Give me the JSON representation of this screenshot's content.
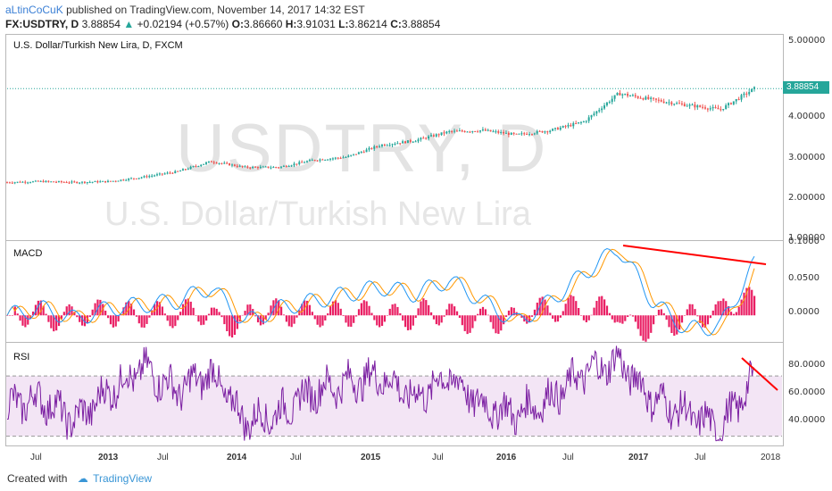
{
  "header": {
    "author": "aLtinCoCuK",
    "published": "published on TradingView.com, November 14, 2017 14:32 EST",
    "symbol": "FX:USDTRY, D",
    "last": "3.88854",
    "change": "+0.02194 (+0.57%)",
    "o_label": "O:",
    "o": "3.86660",
    "h_label": "H:",
    "h": "3.91031",
    "l_label": "L:",
    "l": "3.86214",
    "c_label": "C:",
    "c": "3.88854"
  },
  "price_panel": {
    "title": "U.S. Dollar/Turkish New Lira, D, FXCM",
    "watermark_symbol": "USDTRY, D",
    "watermark_name": "U.S. Dollar/Turkish New Lira",
    "current_price": "3.88854",
    "yticks": [
      "5.00000",
      "4.00000",
      "3.00000",
      "2.00000",
      "1.00000"
    ]
  },
  "macd_panel": {
    "title": "MACD",
    "yticks": [
      "0.1000",
      "0.0500",
      "0.0000"
    ]
  },
  "rsi_panel": {
    "title": "RSI",
    "yticks": [
      "80.0000",
      "60.0000",
      "40.0000"
    ]
  },
  "xaxis": {
    "ticks": [
      {
        "label": "Jul",
        "bold": false
      },
      {
        "label": "2013",
        "bold": true
      },
      {
        "label": "Jul",
        "bold": false
      },
      {
        "label": "2014",
        "bold": true
      },
      {
        "label": "Jul",
        "bold": false
      },
      {
        "label": "2015",
        "bold": true
      },
      {
        "label": "Jul",
        "bold": false
      },
      {
        "label": "2016",
        "bold": true
      },
      {
        "label": "Jul",
        "bold": false
      },
      {
        "label": "2017",
        "bold": true
      },
      {
        "label": "Jul",
        "bold": false
      },
      {
        "label": "2018",
        "bold": false
      }
    ]
  },
  "footer": {
    "created_with": "Created with",
    "brand": "TradingView"
  },
  "colors": {
    "bull": "#26a69a",
    "bear": "#ef5350",
    "macd_line": "#2196f3",
    "signal_line": "#ff9800",
    "histogram": "#e91e63",
    "rsi_line": "#7b1fa2",
    "rsi_band": "#f3e5f5",
    "trendline": "#ff0000"
  },
  "chart_data": [
    {
      "type": "line",
      "panel": "price",
      "x": [
        "2012-07",
        "2012-10",
        "2013-01",
        "2013-04",
        "2013-07",
        "2013-10",
        "2014-01",
        "2014-04",
        "2014-07",
        "2014-10",
        "2015-01",
        "2015-04",
        "2015-07",
        "2015-10",
        "2016-01",
        "2016-04",
        "2016-07",
        "2016-10",
        "2017-01",
        "2017-04",
        "2017-07",
        "2017-09",
        "2017-11"
      ],
      "series": [
        {
          "values": [
            1.78,
            1.8,
            1.78,
            1.8,
            1.9,
            2.02,
            2.25,
            2.12,
            2.12,
            2.28,
            2.35,
            2.62,
            2.72,
            2.92,
            2.95,
            2.85,
            2.95,
            3.15,
            3.78,
            3.64,
            3.52,
            3.42,
            3.89
          ]
        }
      ],
      "ylim": [
        0.5,
        5.1
      ]
    },
    {
      "type": "line",
      "panel": "macd",
      "x": [
        "2012-07",
        "2012-10",
        "2013-01",
        "2013-04",
        "2013-07",
        "2013-10",
        "2014-01",
        "2014-04",
        "2014-07",
        "2014-10",
        "2015-01",
        "2015-04",
        "2015-07",
        "2015-10",
        "2016-01",
        "2016-04",
        "2016-07",
        "2016-10",
        "2017-01",
        "2017-04",
        "2017-07",
        "2017-09",
        "2017-11"
      ],
      "series": [
        {
          "values": [
            0.0,
            0.01,
            -0.005,
            0.01,
            0.015,
            0.02,
            0.04,
            -0.01,
            0.01,
            0.02,
            0.03,
            0.04,
            0.03,
            0.05,
            0.02,
            -0.01,
            0.02,
            0.06,
            0.095,
            0.02,
            -0.02,
            -0.015,
            0.072
          ]
        },
        {
          "values": [
            0.0,
            0.008,
            -0.003,
            0.008,
            0.013,
            0.018,
            0.035,
            -0.005,
            0.008,
            0.018,
            0.028,
            0.036,
            0.028,
            0.045,
            0.02,
            -0.005,
            0.018,
            0.055,
            0.088,
            0.025,
            -0.015,
            -0.01,
            0.065
          ]
        }
      ],
      "ylim": [
        -0.035,
        0.105
      ]
    },
    {
      "type": "line",
      "panel": "rsi",
      "x": [
        "2012-07",
        "2012-10",
        "2013-01",
        "2013-04",
        "2013-07",
        "2013-10",
        "2014-01",
        "2014-04",
        "2014-07",
        "2014-10",
        "2015-01",
        "2015-04",
        "2015-07",
        "2015-10",
        "2016-01",
        "2016-04",
        "2016-07",
        "2016-10",
        "2017-01",
        "2017-04",
        "2017-07",
        "2017-09",
        "2017-11"
      ],
      "series": [
        {
          "values": [
            50,
            55,
            40,
            60,
            75,
            60,
            72,
            40,
            45,
            60,
            65,
            70,
            55,
            70,
            50,
            45,
            55,
            72,
            80,
            55,
            45,
            35,
            68
          ]
        }
      ],
      "ylim": [
        25,
        92
      ],
      "bands": [
        70,
        30
      ]
    }
  ]
}
